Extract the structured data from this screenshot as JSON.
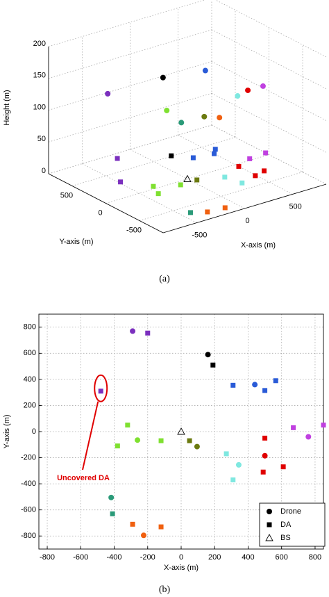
{
  "chart_data": [
    {
      "type": "scatter3d",
      "caption": "(a)",
      "xlabel": "X-axis (m)",
      "ylabel": "Y-axis (m)",
      "zlabel": "Height (m)",
      "xlim": [
        -850,
        850
      ],
      "ylim": [
        -850,
        850
      ],
      "zlim": [
        0,
        200
      ],
      "xticks": [
        -500,
        0,
        500
      ],
      "yticks": [
        -500,
        0,
        500
      ],
      "zticks": [
        0,
        50,
        100,
        150,
        200
      ],
      "series": [
        {
          "name": "Drone",
          "marker": "circle",
          "x": [
            -290,
            160,
            440,
            760,
            500,
            344,
            -261,
            95,
            -418,
            -224
          ],
          "y": [
            770,
            590,
            360,
            -40,
            -185,
            -255,
            -65,
            -115,
            -505,
            -795
          ],
          "z": [
            105,
            120,
            131,
            114,
            127,
            129,
            123,
            100,
            135,
            150
          ],
          "colors": [
            "#7b2fbe",
            "#000000",
            "#2a5bd7",
            "#c040e0",
            "#e00000",
            "#7fe8e0",
            "#7fe030",
            "#6b7a10",
            "#2a9a78",
            "#f06010"
          ]
        },
        {
          "name": "DA",
          "marker": "square",
          "x": [
            -200,
            -480,
            190,
            310,
            500,
            565,
            670,
            850,
            500,
            610,
            490,
            270,
            310,
            -320,
            -380,
            -120,
            50,
            -410,
            -290,
            -120
          ],
          "y": [
            755,
            310,
            510,
            355,
            315,
            390,
            30,
            50,
            -50,
            -270,
            -310,
            -170,
            -370,
            50,
            -110,
            -70,
            -70,
            -630,
            -710,
            -730
          ],
          "colors": [
            "#7b2fbe",
            "#7b2fbe",
            "#000000",
            "#2a5bd7",
            "#2a5bd7",
            "#2a5bd7",
            "#c040e0",
            "#c040e0",
            "#e00000",
            "#e00000",
            "#e00000",
            "#7fe8e0",
            "#7fe8e0",
            "#7fe030",
            "#7fe030",
            "#7fe030",
            "#6b7a10",
            "#2a9a78",
            "#f06010",
            "#f06010"
          ]
        },
        {
          "name": "BS",
          "marker": "triangle",
          "x": [
            0
          ],
          "y": [
            0
          ],
          "colors": [
            "#000000"
          ]
        }
      ]
    },
    {
      "type": "scatter",
      "caption": "(b)",
      "xlabel": "X-axis (m)",
      "ylabel": "Y-axis (m)",
      "annotation": "Uncovered DA",
      "xlim": [
        -850,
        850
      ],
      "ylim": [
        -900,
        900
      ],
      "xticks": [
        -800,
        -600,
        -400,
        -200,
        0,
        200,
        400,
        600,
        800
      ],
      "yticks": [
        -800,
        -600,
        -400,
        -200,
        0,
        200,
        400,
        600,
        800
      ],
      "grid": true,
      "legend": "lower right",
      "series": [
        {
          "name": "Drone",
          "marker": "circle",
          "x": [
            -290,
            160,
            440,
            760,
            500,
            344,
            -261,
            95,
            -418,
            -224
          ],
          "y": [
            770,
            590,
            360,
            -40,
            -185,
            -255,
            -65,
            -115,
            -505,
            -795
          ],
          "colors": [
            "#7b2fbe",
            "#000000",
            "#2a5bd7",
            "#c040e0",
            "#e00000",
            "#7fe8e0",
            "#7fe030",
            "#6b7a10",
            "#2a9a78",
            "#f06010"
          ]
        },
        {
          "name": "DA",
          "marker": "square",
          "x": [
            -200,
            -480,
            190,
            310,
            500,
            565,
            670,
            850,
            500,
            610,
            490,
            270,
            310,
            -320,
            -380,
            -120,
            50,
            -410,
            -290,
            -120
          ],
          "y": [
            755,
            310,
            510,
            355,
            315,
            390,
            30,
            50,
            -50,
            -270,
            -310,
            -170,
            -370,
            50,
            -110,
            -70,
            -70,
            -630,
            -710,
            -730
          ],
          "colors": [
            "#7b2fbe",
            "#7b2fbe",
            "#000000",
            "#2a5bd7",
            "#2a5bd7",
            "#2a5bd7",
            "#c040e0",
            "#c040e0",
            "#e00000",
            "#e00000",
            "#e00000",
            "#7fe8e0",
            "#7fe8e0",
            "#7fe030",
            "#7fe030",
            "#7fe030",
            "#6b7a10",
            "#2a9a78",
            "#f06010",
            "#f06010"
          ]
        },
        {
          "name": "BS",
          "marker": "triangle",
          "x": [
            0
          ],
          "y": [
            0
          ],
          "colors": [
            "#000000"
          ]
        }
      ]
    }
  ]
}
